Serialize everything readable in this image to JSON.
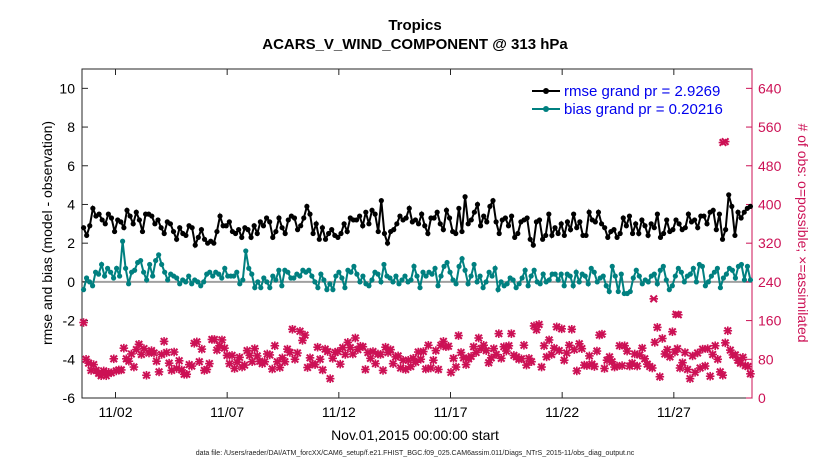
{
  "chart_data": {
    "type": "line",
    "title": "Tropics",
    "subtitle": "ACARS_V_WIND_COMPONENT @ 313 hPa",
    "xlabel": "Nov.01,2015 00:00:00 start",
    "ylabel": "rmse and bias (model - observation)",
    "y2label": "# of obs: o=possible; ×=assimilated",
    "xlim": [
      0.5,
      30.5
    ],
    "ylim": [
      -6,
      11
    ],
    "y2lim": [
      0,
      680
    ],
    "xticks": [
      {
        "value": 2,
        "label": "11/02"
      },
      {
        "value": 7,
        "label": "11/07"
      },
      {
        "value": 12,
        "label": "11/12"
      },
      {
        "value": 17,
        "label": "11/17"
      },
      {
        "value": 22,
        "label": "11/22"
      },
      {
        "value": 27,
        "label": "11/27"
      }
    ],
    "yticks": [
      -6,
      -4,
      -2,
      0,
      2,
      4,
      6,
      8,
      10
    ],
    "y2ticks": [
      0,
      80,
      160,
      240,
      320,
      400,
      480,
      560,
      640
    ],
    "legend_position": "top-right",
    "series": [
      {
        "name": "rmse grand pr = 2.9269",
        "color": "#000000",
        "axis": "left",
        "values": [
          2.8,
          2.4,
          2.9,
          3.8,
          3.4,
          3.5,
          3.2,
          3.0,
          3.5,
          3.3,
          2.6,
          3.2,
          3.1,
          2.8,
          3.7,
          3.4,
          3.0,
          3.6,
          3.2,
          2.6,
          3.5,
          3.5,
          3.4,
          3.0,
          3.2,
          2.8,
          2.5,
          3.1,
          3.0,
          2.6,
          2.2,
          2.8,
          2.5,
          2.4,
          2.9,
          2.8,
          1.9,
          2.3,
          2.7,
          2.2,
          2.0,
          2.1,
          2.0,
          2.6,
          3.4,
          2.9,
          2.9,
          3.1,
          2.6,
          2.5,
          2.7,
          2.3,
          2.8,
          2.7,
          2.3,
          2.9,
          2.5,
          3.1,
          2.9,
          3.3,
          3.1,
          2.3,
          2.6,
          3.3,
          2.8,
          2.5,
          3.2,
          3.4,
          3.3,
          2.7,
          2.9,
          3.3,
          3.9,
          3.5,
          2.5,
          3.0,
          2.2,
          2.8,
          2.2,
          2.5,
          2.7,
          2.4,
          2.3,
          2.5,
          3.0,
          2.6,
          3.3,
          3.2,
          3.2,
          3.4,
          2.9,
          3.6,
          3.0,
          3.7,
          3.5,
          2.6,
          4.2,
          2.5,
          2.0,
          2.6,
          2.7,
          3.0,
          3.4,
          3.2,
          3.3,
          3.8,
          3.1,
          3.2,
          3.0,
          3.5,
          2.9,
          2.5,
          3.3,
          3.3,
          3.6,
          3.0,
          2.7,
          3.7,
          3.3,
          2.6,
          2.5,
          3.8,
          2.6,
          4.4,
          3.0,
          3.2,
          3.6,
          4.0,
          2.9,
          3.4,
          3.1,
          3.9,
          4.2,
          3.1,
          2.5,
          3.2,
          3.3,
          2.9,
          3.4,
          2.3,
          2.5,
          3.1,
          3.2,
          3.3,
          2.2,
          1.9,
          3.1,
          3.2,
          2.2,
          2.4,
          3.5,
          2.4,
          2.8,
          2.5,
          3.0,
          2.4,
          3.1,
          2.7,
          3.5,
          2.8,
          3.1,
          2.4,
          2.4,
          3.6,
          3.2,
          3.1,
          3.6,
          3.0,
          2.8,
          2.3,
          2.6,
          2.7,
          2.3,
          2.5,
          3.3,
          2.9,
          3.4,
          2.5,
          3.0,
          2.5,
          3.2,
          2.9,
          2.4,
          3.0,
          2.8,
          3.5,
          2.3,
          2.5,
          3.2,
          2.6,
          2.7,
          3.2,
          3.0,
          2.7,
          2.8,
          3.5,
          3.1,
          3.2,
          2.8,
          3.4,
          3.4,
          3.0,
          3.6,
          3.7,
          2.7,
          3.5,
          2.2,
          2.7,
          4.5,
          3.9,
          2.4,
          3.6,
          3.3,
          3.6,
          3.8,
          3.9
        ]
      },
      {
        "name": "bias grand pr = 0.20216",
        "color": "#008080",
        "axis": "left",
        "values": [
          -0.4,
          0.2,
          0.0,
          -0.2,
          0.5,
          0.4,
          0.9,
          0.3,
          0.7,
          0.5,
          0.2,
          0.7,
          0.3,
          2.1,
          0.7,
          -0.1,
          0.5,
          0.6,
          1.0,
          1.1,
          0.5,
          0.1,
          0.9,
          0.3,
          1.1,
          1.4,
          0.9,
          0.5,
          0.1,
          0.4,
          0.3,
          0.2,
          -0.1,
          0.1,
          0.0,
          0.3,
          -0.1,
          0.1,
          0.0,
          -0.2,
          0.0,
          0.4,
          0.5,
          0.3,
          0.5,
          0.4,
          0.2,
          0.7,
          0.3,
          0.3,
          0.3,
          0.5,
          -0.1,
          0.1,
          1.6,
          0.7,
          0.4,
          -0.3,
          0.0,
          -0.3,
          0.2,
          0.0,
          -0.3,
          0.3,
          0.1,
          0.6,
          -0.2,
          0.6,
          0.5,
          0.2,
          0.2,
          0.4,
          0.3,
          0.6,
          0.5,
          0.6,
          0.3,
          0.0,
          -0.3,
          0.4,
          0.1,
          -0.4,
          -0.1,
          -0.4,
          0.3,
          0.5,
          0.2,
          -0.3,
          0.6,
          0.5,
          0.8,
          0.4,
          0.0,
          0.3,
          -0.1,
          -0.2,
          0.1,
          0.5,
          0.4,
          0.0,
          0.9,
          0.3,
          0.2,
          0.0,
          0.3,
          -0.1,
          0.1,
          0.3,
          0.0,
          0.1,
          0.8,
          0.3,
          -0.3,
          0.5,
          0.3,
          0.5,
          0.4,
          0.7,
          -0.2,
          0.3,
          0.8,
          1.0,
          0.5,
          0.1,
          -0.1,
          0.8,
          1.2,
          0.6,
          -0.1,
          0.3,
          0.9,
          0.0,
          0.3,
          -0.3,
          0.0,
          0.5,
          0.3,
          0.7,
          -0.4,
          0.0,
          -0.2,
          -0.1,
          0.2,
          0.1,
          -0.3,
          -0.1,
          0.2,
          0.6,
          -0.2,
          0.3,
          0.6,
          0.0,
          -0.1,
          0.4,
          0.0,
          0.1,
          0.4,
          0.4,
          0.1,
          0.4,
          -0.2,
          0.4,
          0.3,
          -0.2,
          0.5,
          0.0,
          0.4,
          0.3,
          -0.1,
          0.7,
          0.5,
          0.0,
          0.2,
          0.3,
          -0.2,
          -0.5,
          0.8,
          0.3,
          -0.5,
          0.4,
          -0.6,
          -0.6,
          -0.5,
          0.2,
          0.6,
          0.3,
          -0.1,
          0.1,
          0.0,
          0.3,
          0.4,
          -0.1,
          0.6,
          0.8,
          0.1,
          -0.4,
          -0.2,
          0.3,
          0.7,
          0.5,
          0.0,
          0.3,
          0.4,
          0.7,
          0.0,
          0.9,
          0.8,
          -0.2,
          0.0,
          0.3,
          0.5,
          0.7,
          -0.3,
          0.2,
          0.4,
          0.7,
          0.6,
          0.2,
          0.8,
          0.9,
          0.1,
          0.8,
          0.1
        ]
      },
      {
        "name": "# of obs",
        "color": "#cc1155",
        "axis": "right",
        "values": [
          156,
          80,
          72,
          57,
          69,
          57,
          51,
          46,
          56,
          46,
          53,
          52,
          81,
          56,
          58,
          58,
          103,
          81,
          76,
          91,
          64,
          100,
          111,
          90,
          102,
          47,
          93,
          98,
          93,
          76,
          54,
          90,
          117,
          94,
          72,
          57,
          95,
          61,
          77,
          58,
          49,
          49,
          69,
          66,
          113,
          116,
          75,
          101,
          57,
          59,
          71,
          121,
          121,
          99,
          108,
          120,
          103,
          88,
          71,
          88,
          61,
          74,
          84,
          64,
          68,
          98,
          88,
          75,
          102,
          87,
          76,
          71,
          75,
          91,
          89,
          60,
          108,
          75,
          63,
          83,
          75,
          101,
          94,
          142,
          80,
          93,
          138,
          119,
          130,
          63,
          83,
          70,
          69,
          105,
          80,
          58,
          101,
          96,
          40,
          82,
          94,
          96,
          70,
          104,
          90,
          115,
          104,
          91,
          124,
          100,
          107,
          106,
          59,
          94,
          82,
          96,
          71,
          91,
          90,
          57,
          105,
          94,
          100,
          71,
          85,
          87,
          62,
          78,
          59,
          78,
          65,
          82,
          74,
          95,
          80,
          96,
          60,
          109,
          62,
          78,
          98,
          59,
          109,
          117,
          106,
          107,
          53,
          82,
          64,
          129,
          94,
          83,
          69,
          81,
          86,
          106,
          94,
          124,
          102,
          109,
          98,
          73,
          83,
          102,
          90,
          133,
          82,
          106,
          97,
          108,
          133,
          88,
          85,
          80,
          81,
          109,
          68,
          82,
          75,
          149,
          141,
          152,
          64,
          108,
          85,
          120,
          90,
          103,
          147,
          98,
          143,
          78,
          93,
          109,
          142,
          100,
          56,
          112,
          102,
          68,
          67,
          87,
          70,
          65,
          97,
          130,
          132,
          61,
          78,
          85,
          75,
          64,
          66,
          108,
          67,
          108,
          97,
          66,
          72,
          91,
          66,
          89,
          103,
          81,
          70,
          65,
          62,
          115,
          146,
          44,
          123,
          91,
          100,
          85,
          137,
          95,
          102,
          62,
          73,
          94,
          59,
          40,
          87,
          53,
          93,
          62,
          101,
          66,
          102,
          45,
          90,
          108,
          80,
          54,
          47,
          114,
          139,
          99,
          89,
          89,
          78,
          72,
          84,
          67,
          65,
          50
        ]
      }
    ],
    "extra_points": [
      {
        "x": 26.1,
        "y2": 205
      },
      {
        "x": 27.1,
        "y2": 173
      },
      {
        "x": 27.2,
        "y2": 172
      },
      {
        "x": 29.2,
        "y2": 528
      },
      {
        "x": 29.3,
        "y2": 530
      }
    ]
  }
}
